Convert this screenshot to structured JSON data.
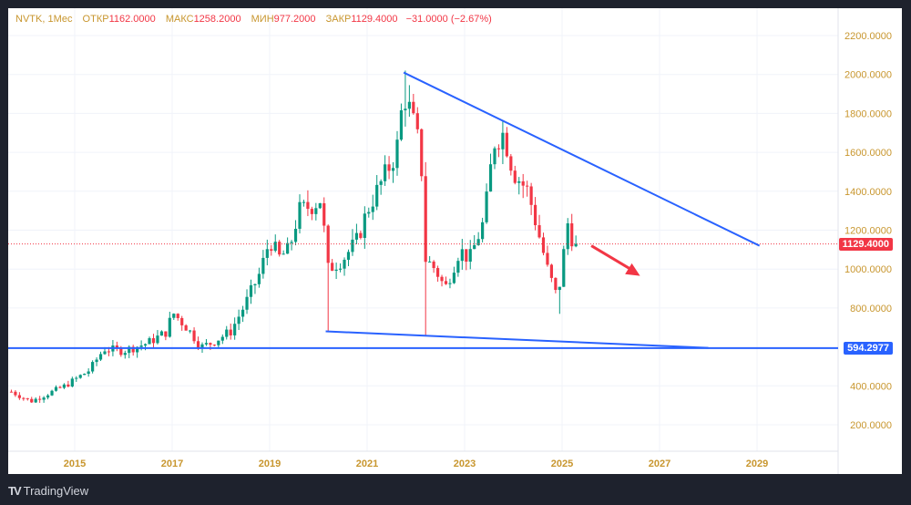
{
  "legend": {
    "symbol": "NVTK, 1Мес",
    "open_label": "ОТКР",
    "open": "1162.0000",
    "high_label": "МАКС",
    "high": "1258.2000",
    "low_label": "МИН",
    "low": "977.2000",
    "close_label": "ЗАКР",
    "close": "1129.4000",
    "change": "−31.0000 (−2.67%)"
  },
  "brand": "TradingView",
  "colors": {
    "up": "#089981",
    "down": "#f23645",
    "trend": "#2962ff",
    "axis_text": "#c8962e",
    "grid": "#f0f3fa"
  },
  "chart_data": {
    "type": "candlestick",
    "interval": "monthly",
    "ylim": [
      100,
      2300
    ],
    "xlim": [
      2013.64,
      2030.7
    ],
    "y_ticks": [
      "200.0000",
      "400.0000",
      "800.0000",
      "1000.0000",
      "1200.0000",
      "1400.0000",
      "1600.0000",
      "1800.0000",
      "2000.0000",
      "2200.0000"
    ],
    "x_ticks": [
      "2015",
      "2017",
      "2019",
      "2021",
      "2023",
      "2025",
      "2027",
      "2029"
    ],
    "close_anchors": [
      [
        2013.7,
        370
      ],
      [
        2014.1,
        320
      ],
      [
        2014.8,
        400
      ],
      [
        2015.3,
        480
      ],
      [
        2015.6,
        590
      ],
      [
        2016.0,
        580
      ],
      [
        2016.5,
        620
      ],
      [
        2016.9,
        680
      ],
      [
        2017.0,
        780
      ],
      [
        2017.3,
        700
      ],
      [
        2017.6,
        600
      ],
      [
        2017.8,
        620
      ],
      [
        2018.2,
        680
      ],
      [
        2018.5,
        820
      ],
      [
        2018.8,
        980
      ],
      [
        2019.0,
        1150
      ],
      [
        2019.2,
        1060
      ],
      [
        2019.4,
        1100
      ],
      [
        2019.6,
        1300
      ],
      [
        2019.9,
        1330
      ],
      [
        2020.05,
        1360
      ],
      [
        2020.2,
        1000
      ],
      [
        2020.5,
        1050
      ],
      [
        2020.8,
        1150
      ],
      [
        2021.0,
        1300
      ],
      [
        2021.3,
        1450
      ],
      [
        2021.6,
        1600
      ],
      [
        2021.75,
        1900
      ],
      [
        2021.9,
        1800
      ],
      [
        2022.1,
        1600
      ],
      [
        2022.2,
        1050
      ],
      [
        2022.4,
        1000
      ],
      [
        2022.6,
        900
      ],
      [
        2022.9,
        1100
      ],
      [
        2023.1,
        1050
      ],
      [
        2023.4,
        1250
      ],
      [
        2023.6,
        1650
      ],
      [
        2023.8,
        1700
      ],
      [
        2024.0,
        1500
      ],
      [
        2024.3,
        1400
      ],
      [
        2024.5,
        1200
      ],
      [
        2024.7,
        1000
      ],
      [
        2024.9,
        850
      ],
      [
        2025.0,
        1000
      ],
      [
        2025.1,
        1250
      ],
      [
        2025.2,
        1162
      ],
      [
        2025.3,
        1129.4
      ]
    ],
    "spikes": [
      [
        2020.2,
        680
      ],
      [
        2022.2,
        660
      ],
      [
        2021.75,
        2020
      ],
      [
        2023.8,
        1760
      ],
      [
        2024.95,
        770
      ]
    ],
    "last_price": {
      "value": 1129.4,
      "label": "1129.4000"
    },
    "support_line": {
      "value": 594.2977,
      "label": "594.2977"
    },
    "upper_trendline": [
      [
        2021.75,
        2010
      ],
      [
        2029.05,
        1120
      ]
    ],
    "lower_trendline": [
      [
        2020.15,
        680
      ],
      [
        2028.0,
        595
      ]
    ],
    "arrow": {
      "from": [
        2025.6,
        1120
      ],
      "to": [
        2026.6,
        965
      ],
      "direction": "down"
    }
  }
}
